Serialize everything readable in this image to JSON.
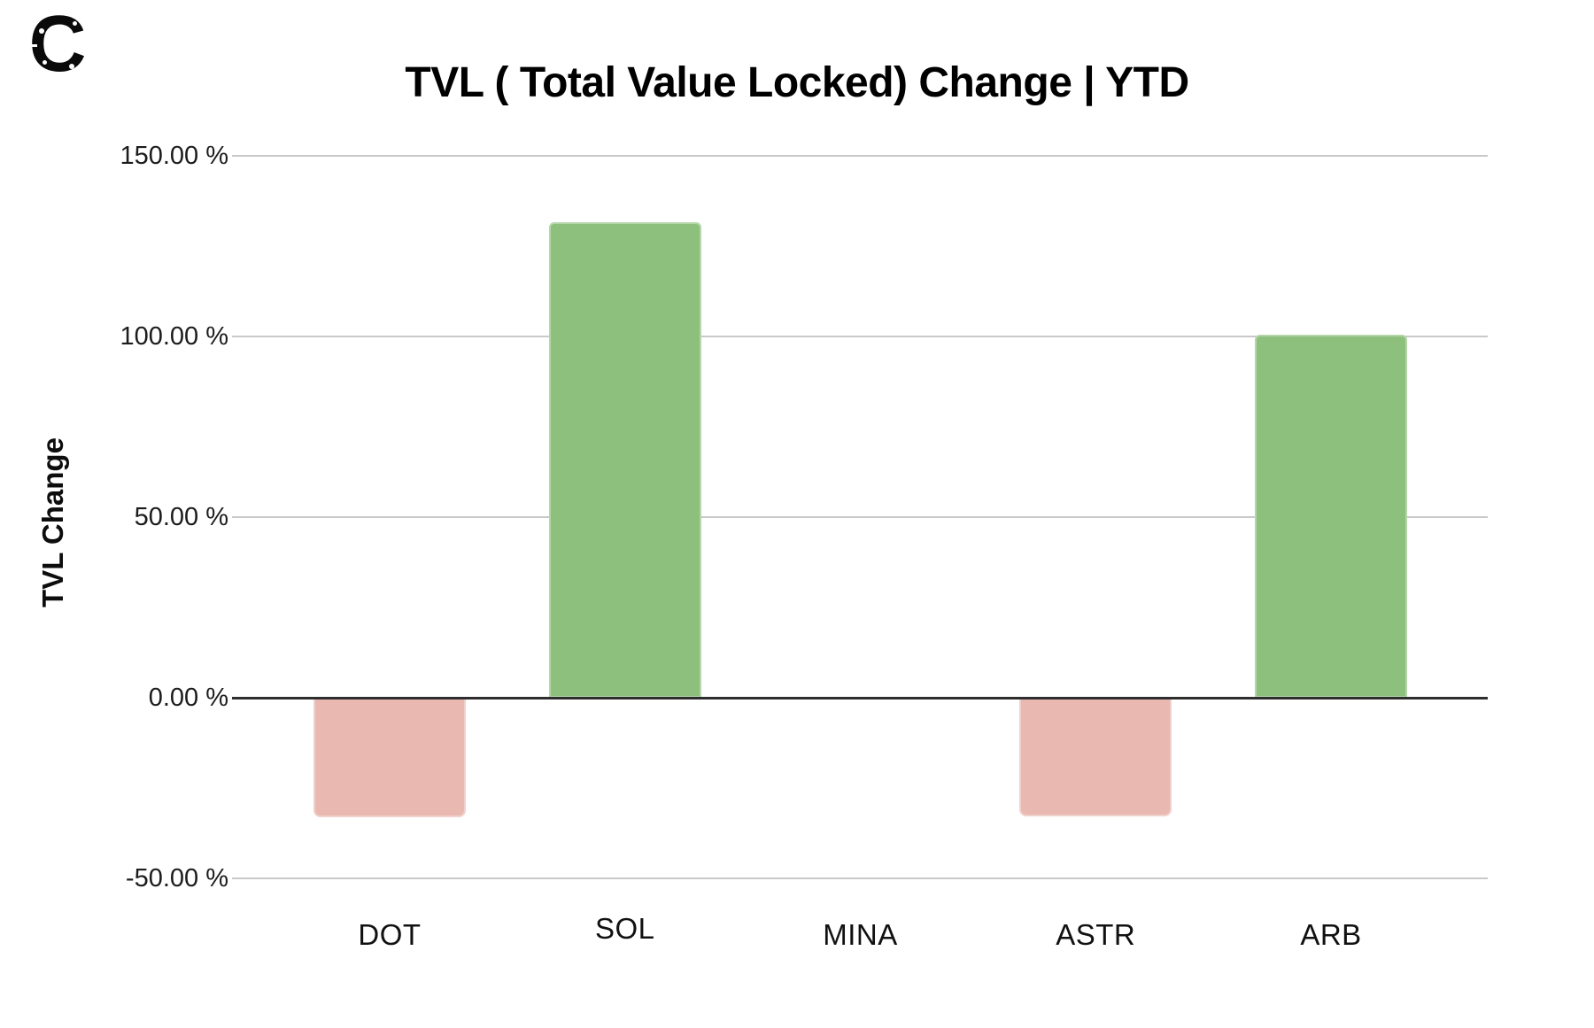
{
  "logo": {
    "letter": "C"
  },
  "header": {
    "title": "TVL ( Total Value Locked) Change | YTD"
  },
  "chart_data": {
    "type": "bar",
    "title": "TVL ( Total Value Locked) Change | YTD",
    "xlabel": "",
    "ylabel": "TVL Change",
    "categories": [
      "DOT",
      "SOL",
      "MINA",
      "ASTR",
      "ARB"
    ],
    "values": [
      -33.2,
      131.5,
      0,
      -32.8,
      100.5
    ],
    "unit": "%",
    "ylim": [
      -50,
      150
    ],
    "yticks": [
      {
        "value": 150,
        "label": "150.00 %"
      },
      {
        "value": 100,
        "label": "100.00 %"
      },
      {
        "value": 50,
        "label": "50.00 %"
      },
      {
        "value": 0,
        "label": "0.00 %"
      },
      {
        "value": -50,
        "label": "-50.00 %"
      }
    ],
    "grid": true,
    "legend": "none",
    "xtick_dy": [
      0,
      -7,
      0,
      0,
      0
    ],
    "colors": {
      "positive": "#8dc07c",
      "negative": "#e9b8b0",
      "gridline": "#c9c9c9",
      "zero_line": "#2e2e2e",
      "tick_text": "#1c1c1c",
      "title_text": "#000000",
      "background": "#ffffff"
    }
  }
}
